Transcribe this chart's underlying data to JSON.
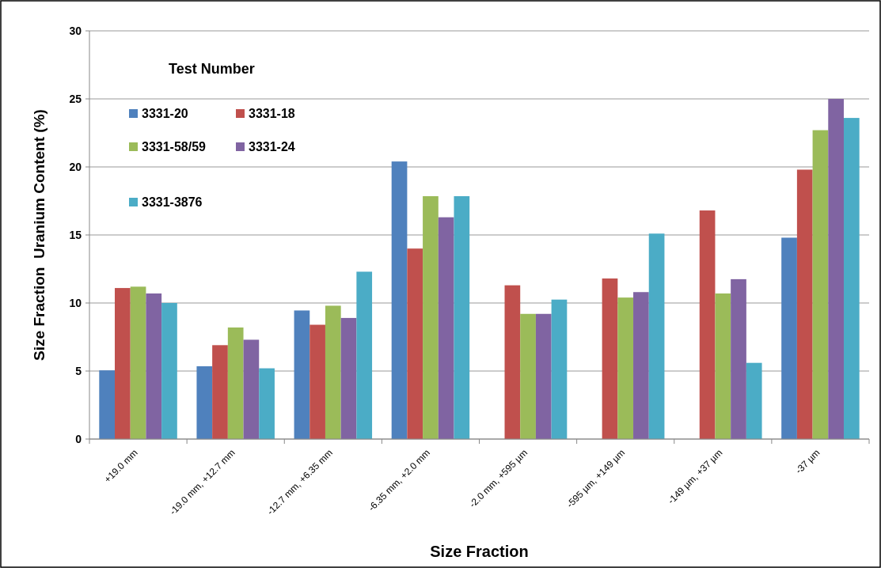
{
  "chart_data": {
    "type": "bar",
    "xlabel": "Size Fraction",
    "ylabel": "Size Fraction  Uranium Content (%)",
    "legend_title": "Test Number",
    "categories": [
      "+19.0 mm",
      "-19.0 mm, +12.7 mm",
      "-12.7 mm, +6.35 mm",
      "-6.35 mm, +2.0 mm",
      "-2.0 mm, +595 µm",
      "-595 µm, +149 µm",
      "-149 µm, +37 µm",
      "-37 µm"
    ],
    "series": [
      {
        "name": "3331-20",
        "color": "#4f81bd",
        "values": [
          5.05,
          5.35,
          9.45,
          20.4,
          null,
          null,
          null,
          14.8
        ]
      },
      {
        "name": "3331-18",
        "color": "#c0504d",
        "values": [
          11.1,
          6.9,
          8.4,
          14.0,
          11.3,
          11.8,
          16.8,
          19.8
        ]
      },
      {
        "name": "3331-58/59",
        "color": "#9bbb59",
        "values": [
          11.2,
          8.2,
          9.8,
          17.85,
          9.2,
          10.4,
          10.7,
          22.7
        ]
      },
      {
        "name": "3331-24",
        "color": "#8064a2",
        "values": [
          10.7,
          7.3,
          8.9,
          16.3,
          9.2,
          10.8,
          11.75,
          25.0
        ]
      },
      {
        "name": "3331-3876",
        "color": "#4bacc6",
        "values": [
          10.0,
          5.2,
          12.3,
          17.85,
          10.25,
          15.1,
          5.6,
          23.6
        ]
      }
    ],
    "ylim": [
      0,
      30
    ],
    "yticks": [
      0,
      5,
      10,
      15,
      20,
      25,
      30
    ],
    "grid": "y",
    "legend": "top left"
  }
}
